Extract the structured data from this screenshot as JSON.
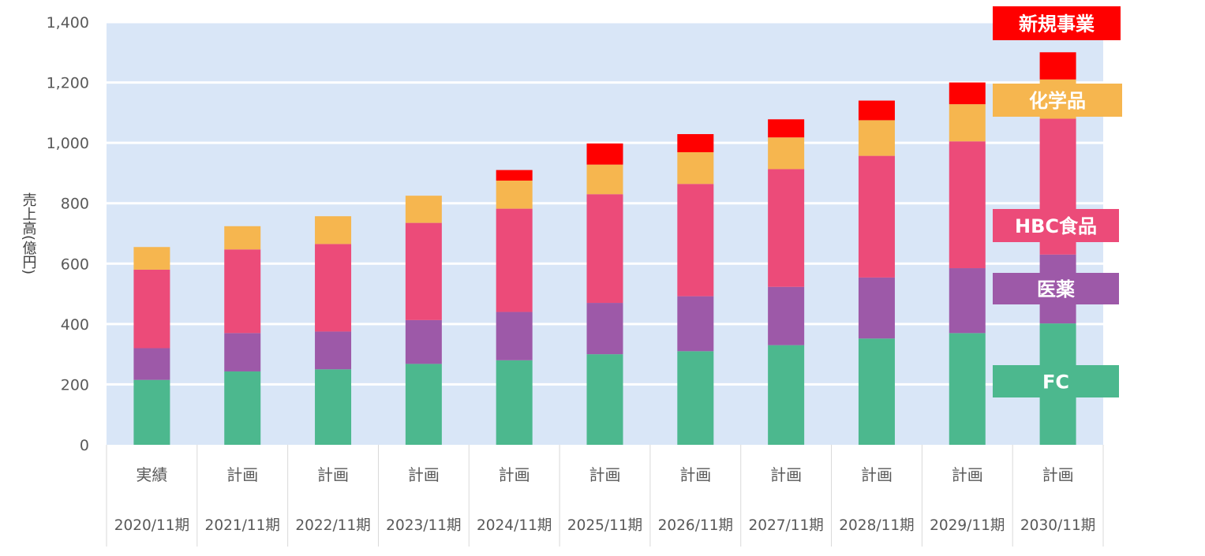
{
  "chart_data": {
    "type": "bar",
    "stacked": true,
    "ylabel": "売上高(億円)",
    "ylim": [
      0,
      1400
    ],
    "yticks": [
      "0",
      "200",
      "400",
      "600",
      "800",
      "1,000",
      "1,200",
      "1,400"
    ],
    "ytick_values": [
      0,
      200,
      400,
      600,
      800,
      1000,
      1200,
      1400
    ],
    "grid": true,
    "legend_position": "right",
    "categories_top": [
      "実績",
      "計画",
      "計画",
      "計画",
      "計画",
      "計画",
      "計画",
      "計画",
      "計画",
      "計画",
      "計画"
    ],
    "categories": [
      "2020/11期",
      "2021/11期",
      "2022/11期",
      "2023/11期",
      "2024/11期",
      "2025/11期",
      "2026/11期",
      "2027/11期",
      "2028/11期",
      "2029/11期",
      "2030/11期"
    ],
    "series": [
      {
        "name": "FC",
        "color": "#4cb88e",
        "values": [
          215,
          243,
          250,
          268,
          280,
          300,
          310,
          330,
          352,
          370,
          402
        ]
      },
      {
        "name": "医薬",
        "color": "#9d59a8",
        "values": [
          105,
          127,
          125,
          145,
          160,
          170,
          182,
          193,
          202,
          215,
          228
        ]
      },
      {
        "name": "HBC食品",
        "color": "#ec4b79",
        "values": [
          260,
          277,
          290,
          322,
          342,
          360,
          372,
          390,
          403,
          420,
          450
        ]
      },
      {
        "name": "化学品",
        "color": "#f6b64f",
        "values": [
          75,
          77,
          92,
          90,
          93,
          98,
          105,
          105,
          118,
          123,
          130
        ]
      },
      {
        "name": "新規事業",
        "color": "#ff0000",
        "values": [
          0,
          0,
          0,
          0,
          35,
          70,
          60,
          60,
          65,
          72,
          90
        ]
      }
    ]
  },
  "colors": {
    "plot_background": "#d9e6f7",
    "gridline": "#ffffff",
    "axis_text": "#595959"
  }
}
